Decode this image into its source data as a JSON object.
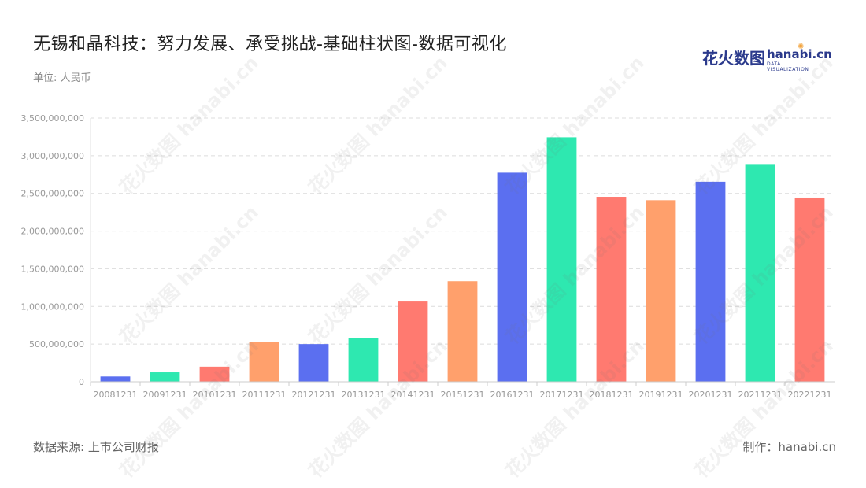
{
  "header": {
    "title": "无锡和晶科技：努力发展、承受挑战-基础柱状图-数据可视化",
    "unit": "单位: 人民币"
  },
  "logo": {
    "cn": "花火数图",
    "en": "hanabi.cn",
    "sub": "DATA VISUALIZATION"
  },
  "footer": {
    "source": "数据来源: 上市公司财报",
    "maker": "制作：hanabi.cn"
  },
  "watermark": "花火数图 hanabi.cn",
  "chart_data": {
    "type": "bar",
    "title": "无锡和晶科技：努力发展、承受挑战-基础柱状图-数据可视化",
    "ylabel": "",
    "xlabel": "",
    "ylim": [
      0,
      3500000000
    ],
    "yticks": [
      0,
      500000000,
      1000000000,
      1500000000,
      2000000000,
      2500000000,
      3000000000,
      3500000000
    ],
    "ytick_labels": [
      "0",
      "500,000,000",
      "1,000,000,000",
      "1,500,000,000",
      "2,000,000,000",
      "2,500,000,000",
      "3,000,000,000",
      "3,500,000,000"
    ],
    "grid": true,
    "categories": [
      "20081231",
      "20091231",
      "20101231",
      "20111231",
      "20121231",
      "20131231",
      "20141231",
      "20151231",
      "20161231",
      "20171231",
      "20181231",
      "20191231",
      "20201231",
      "20211231",
      "20221231"
    ],
    "values": [
      70000000,
      125000000,
      200000000,
      530000000,
      500000000,
      575000000,
      1065000000,
      1335000000,
      2775000000,
      3245000000,
      2455000000,
      2410000000,
      2655000000,
      2890000000,
      2445000000
    ],
    "colors": [
      "#5b6ff0",
      "#2ee8b0",
      "#ff7a70",
      "#ffa06c",
      "#5b6ff0",
      "#2ee8b0",
      "#ff7a70",
      "#ffa06c",
      "#5b6ff0",
      "#2ee8b0",
      "#ff7a70",
      "#ffa06c",
      "#5b6ff0",
      "#2ee8b0",
      "#ff7a70"
    ]
  }
}
